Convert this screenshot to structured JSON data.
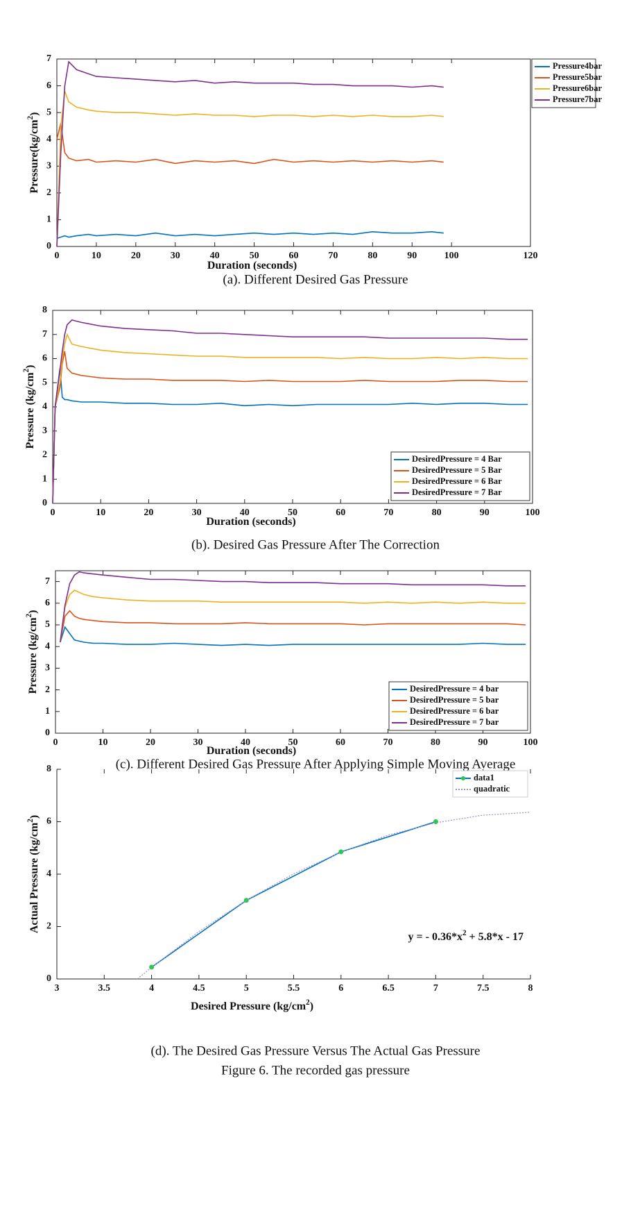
{
  "chart_data": [
    {
      "type": "line",
      "caption": "(a). Different Desired Gas Pressure",
      "xlabel": [
        "Duration (seconds)"
      ],
      "ylabel": [
        "Pressure(kg/cm",
        "2",
        ")"
      ],
      "xlim": [
        0,
        120
      ],
      "xticks": [
        0,
        10,
        20,
        30,
        40,
        50,
        60,
        70,
        80,
        90,
        100,
        120
      ],
      "ylim": [
        0,
        7
      ],
      "yticks": [
        0,
        1,
        2,
        3,
        4,
        5,
        6,
        7
      ],
      "grid": false,
      "legend": "outside upper right",
      "x": [
        0,
        1,
        2,
        3,
        5,
        8,
        10,
        15,
        20,
        25,
        30,
        35,
        40,
        45,
        50,
        55,
        60,
        65,
        70,
        75,
        80,
        85,
        90,
        95,
        98
      ],
      "series": [
        {
          "name": "Pressure4bar",
          "color": "#0072BD",
          "values": [
            0.3,
            0.35,
            0.4,
            0.35,
            0.4,
            0.45,
            0.4,
            0.45,
            0.4,
            0.5,
            0.4,
            0.45,
            0.4,
            0.45,
            0.5,
            0.45,
            0.5,
            0.45,
            0.5,
            0.45,
            0.55,
            0.5,
            0.5,
            0.55,
            0.5
          ]
        },
        {
          "name": "Pressure5bar",
          "color": "#D95319",
          "values": [
            4.0,
            4.6,
            3.5,
            3.3,
            3.2,
            3.25,
            3.15,
            3.2,
            3.15,
            3.25,
            3.1,
            3.2,
            3.15,
            3.2,
            3.1,
            3.25,
            3.15,
            3.2,
            3.15,
            3.2,
            3.15,
            3.2,
            3.15,
            3.2,
            3.15
          ]
        },
        {
          "name": "Pressure6bar",
          "color": "#EDB120",
          "values": [
            0,
            4.5,
            5.8,
            5.4,
            5.2,
            5.1,
            5.05,
            5.0,
            5.0,
            4.95,
            4.9,
            4.95,
            4.9,
            4.9,
            4.85,
            4.9,
            4.9,
            4.85,
            4.9,
            4.85,
            4.9,
            4.85,
            4.85,
            4.9,
            4.85
          ]
        },
        {
          "name": "Pressure7bar",
          "color": "#7E2F8E",
          "values": [
            0,
            3.5,
            6.0,
            6.9,
            6.6,
            6.45,
            6.35,
            6.3,
            6.25,
            6.2,
            6.15,
            6.2,
            6.1,
            6.15,
            6.1,
            6.1,
            6.1,
            6.05,
            6.05,
            6.0,
            6.0,
            6.0,
            5.95,
            6.0,
            5.95
          ]
        }
      ]
    },
    {
      "type": "line",
      "caption": "(b). Desired Gas Pressure After The Correction",
      "xlabel": [
        "Duration (seconds)"
      ],
      "ylabel": [
        "Pressure (kg/cm",
        "2",
        ")"
      ],
      "xlim": [
        0,
        100
      ],
      "xticks": [
        0,
        10,
        20,
        30,
        40,
        50,
        60,
        70,
        80,
        90,
        100
      ],
      "ylim": [
        0,
        8
      ],
      "yticks": [
        0,
        1,
        2,
        3,
        4,
        5,
        6,
        7,
        8
      ],
      "grid": false,
      "legend": "lower right",
      "x": [
        0,
        0.5,
        1.5,
        2,
        2.5,
        3,
        4,
        6,
        10,
        15,
        20,
        25,
        30,
        35,
        40,
        45,
        50,
        55,
        60,
        65,
        70,
        75,
        80,
        85,
        90,
        95,
        99
      ],
      "series": [
        {
          "name": "DesiredPressure = 4 Bar",
          "color": "#0072BD",
          "values": [
            0,
            4.0,
            5.6,
            4.4,
            4.3,
            4.3,
            4.25,
            4.2,
            4.2,
            4.15,
            4.15,
            4.1,
            4.1,
            4.15,
            4.05,
            4.1,
            4.05,
            4.1,
            4.1,
            4.1,
            4.1,
            4.15,
            4.1,
            4.15,
            4.15,
            4.1,
            4.1
          ]
        },
        {
          "name": "DesiredPressure = 5 Bar",
          "color": "#D95319",
          "values": [
            0,
            4.0,
            4.8,
            5.8,
            6.3,
            5.6,
            5.4,
            5.3,
            5.2,
            5.15,
            5.15,
            5.1,
            5.1,
            5.1,
            5.05,
            5.1,
            5.05,
            5.05,
            5.05,
            5.1,
            5.05,
            5.05,
            5.05,
            5.1,
            5.1,
            5.05,
            5.05
          ]
        },
        {
          "name": "DesiredPressure = 6 Bar",
          "color": "#EDB120",
          "values": [
            0,
            4.0,
            5.0,
            6.0,
            6.6,
            7.0,
            6.6,
            6.5,
            6.35,
            6.25,
            6.2,
            6.15,
            6.1,
            6.1,
            6.05,
            6.05,
            6.05,
            6.05,
            6.0,
            6.05,
            6.0,
            6.0,
            6.05,
            6.0,
            6.05,
            6.0,
            6.0
          ]
        },
        {
          "name": "DesiredPressure = 7 Bar",
          "color": "#7E2F8E",
          "values": [
            0,
            4.0,
            5.5,
            6.3,
            7.0,
            7.4,
            7.6,
            7.5,
            7.35,
            7.25,
            7.2,
            7.15,
            7.05,
            7.05,
            7.0,
            6.95,
            6.9,
            6.9,
            6.9,
            6.9,
            6.85,
            6.85,
            6.85,
            6.85,
            6.85,
            6.8,
            6.8
          ]
        }
      ]
    },
    {
      "type": "line",
      "caption": "(c). Different Desired Gas Pressure After Applying Simple Moving Average",
      "xlabel": [
        "Duration (seconds)"
      ],
      "ylabel": [
        "Pressure (kg/cm",
        "2",
        ")"
      ],
      "xlim": [
        0,
        100
      ],
      "xticks": [
        0,
        10,
        20,
        30,
        40,
        50,
        60,
        70,
        80,
        90,
        100
      ],
      "ylim": [
        0,
        7.5
      ],
      "yticks": [
        0,
        1,
        2,
        3,
        4,
        5,
        6,
        7
      ],
      "grid": false,
      "legend": "lower right",
      "x": [
        1,
        2,
        3,
        4,
        5,
        6,
        8,
        10,
        15,
        20,
        25,
        30,
        35,
        40,
        45,
        50,
        55,
        60,
        65,
        70,
        75,
        80,
        85,
        90,
        95,
        99
      ],
      "series": [
        {
          "name": "DesiredPressure = 4 bar",
          "color": "#0072BD",
          "values": [
            4.2,
            4.9,
            4.6,
            4.3,
            4.25,
            4.2,
            4.15,
            4.15,
            4.1,
            4.1,
            4.15,
            4.1,
            4.05,
            4.1,
            4.05,
            4.1,
            4.1,
            4.1,
            4.1,
            4.1,
            4.1,
            4.1,
            4.1,
            4.15,
            4.1,
            4.1
          ]
        },
        {
          "name": "DesiredPressure = 5 bar",
          "color": "#D95319",
          "values": [
            4.2,
            5.4,
            5.65,
            5.4,
            5.3,
            5.25,
            5.2,
            5.15,
            5.1,
            5.1,
            5.05,
            5.05,
            5.05,
            5.1,
            5.05,
            5.05,
            5.05,
            5.05,
            5.0,
            5.05,
            5.05,
            5.05,
            5.05,
            5.05,
            5.05,
            5.0
          ]
        },
        {
          "name": "DesiredPressure = 6 bar",
          "color": "#EDB120",
          "values": [
            4.2,
            5.8,
            6.4,
            6.6,
            6.5,
            6.4,
            6.3,
            6.25,
            6.15,
            6.1,
            6.1,
            6.1,
            6.05,
            6.05,
            6.05,
            6.05,
            6.05,
            6.05,
            6.0,
            6.05,
            6.0,
            6.05,
            6.0,
            6.05,
            6.0,
            6.0
          ]
        },
        {
          "name": "DesiredPressure = 7 bar",
          "color": "#7E2F8E",
          "values": [
            4.2,
            5.9,
            6.9,
            7.3,
            7.45,
            7.4,
            7.35,
            7.3,
            7.2,
            7.1,
            7.1,
            7.05,
            7.0,
            7.0,
            6.95,
            6.95,
            6.95,
            6.9,
            6.9,
            6.9,
            6.85,
            6.85,
            6.85,
            6.85,
            6.8,
            6.8
          ]
        }
      ]
    },
    {
      "type": "line",
      "caption": "(d). The Desired Gas Pressure Versus The Actual Gas Pressure",
      "xlabel": [
        "Desired Pressure (kg/cm",
        "2",
        ")"
      ],
      "ylabel": [
        "Actual Pressure (kg/cm",
        "2",
        ")"
      ],
      "xlim": [
        3,
        8
      ],
      "xticks": [
        3,
        3.5,
        4,
        4.5,
        5,
        5.5,
        6,
        6.5,
        7,
        7.5,
        8
      ],
      "ylim": [
        0,
        8
      ],
      "yticks": [
        0,
        2,
        4,
        6,
        8
      ],
      "grid": false,
      "legend": "upper right",
      "annotation": [
        "y = - 0.36*x",
        "2",
        " + 5.8*x - 17"
      ],
      "series": [
        {
          "name": "data1",
          "color": "#0072BD",
          "marker": "o",
          "marker_color": "#22cc44",
          "x": [
            4,
            5,
            6,
            7
          ],
          "values": [
            0.45,
            3.0,
            4.85,
            6.0
          ]
        },
        {
          "name": "quadratic",
          "color": "#9a8fc8",
          "linestyle": "dotted",
          "x": [
            3.85,
            4,
            4.5,
            5,
            5.5,
            6,
            6.5,
            7,
            7.5,
            8
          ],
          "values": [
            0,
            0.44,
            1.81,
            3.0,
            4.01,
            4.84,
            5.49,
            5.96,
            6.25,
            6.36
          ]
        }
      ]
    }
  ],
  "figure_caption": "Figure 6. The recorded gas pressure"
}
